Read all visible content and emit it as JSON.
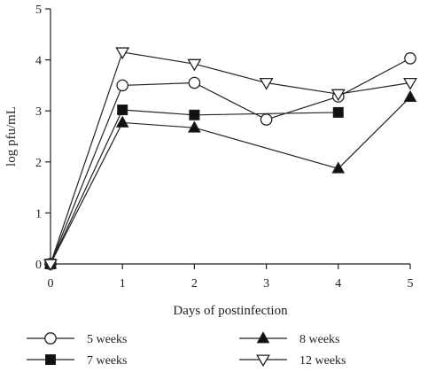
{
  "chart_data": {
    "type": "line",
    "title": "",
    "xlabel": "Days of postinfection",
    "ylabel": "log pfu/mL",
    "xlim": [
      0,
      5
    ],
    "ylim": [
      0,
      5
    ],
    "x_ticks": [
      "0",
      "1",
      "2",
      "3",
      "4",
      "5"
    ],
    "y_ticks": [
      "0",
      "1",
      "2",
      "3",
      "4",
      "5"
    ],
    "grid": false,
    "legend_position": "bottom",
    "series": [
      {
        "name": "5 weeks",
        "marker": "circle-open",
        "x": [
          0,
          1,
          2,
          3,
          4,
          5
        ],
        "y": [
          0,
          3.5,
          3.55,
          2.83,
          3.28,
          4.03
        ]
      },
      {
        "name": "7 weeks",
        "marker": "square-filled",
        "x": [
          0,
          1,
          2,
          4
        ],
        "y": [
          0,
          3.02,
          2.92,
          2.97
        ]
      },
      {
        "name": "8 weeks",
        "marker": "triangle-up-filled",
        "x": [
          0,
          1,
          2,
          4,
          5
        ],
        "y": [
          0,
          2.77,
          2.67,
          1.87,
          3.27
        ]
      },
      {
        "name": "12 weeks",
        "marker": "triangle-down-open",
        "x": [
          0,
          1,
          2,
          3,
          4,
          5
        ],
        "y": [
          0,
          4.15,
          3.92,
          3.55,
          3.33,
          3.55
        ]
      }
    ]
  }
}
